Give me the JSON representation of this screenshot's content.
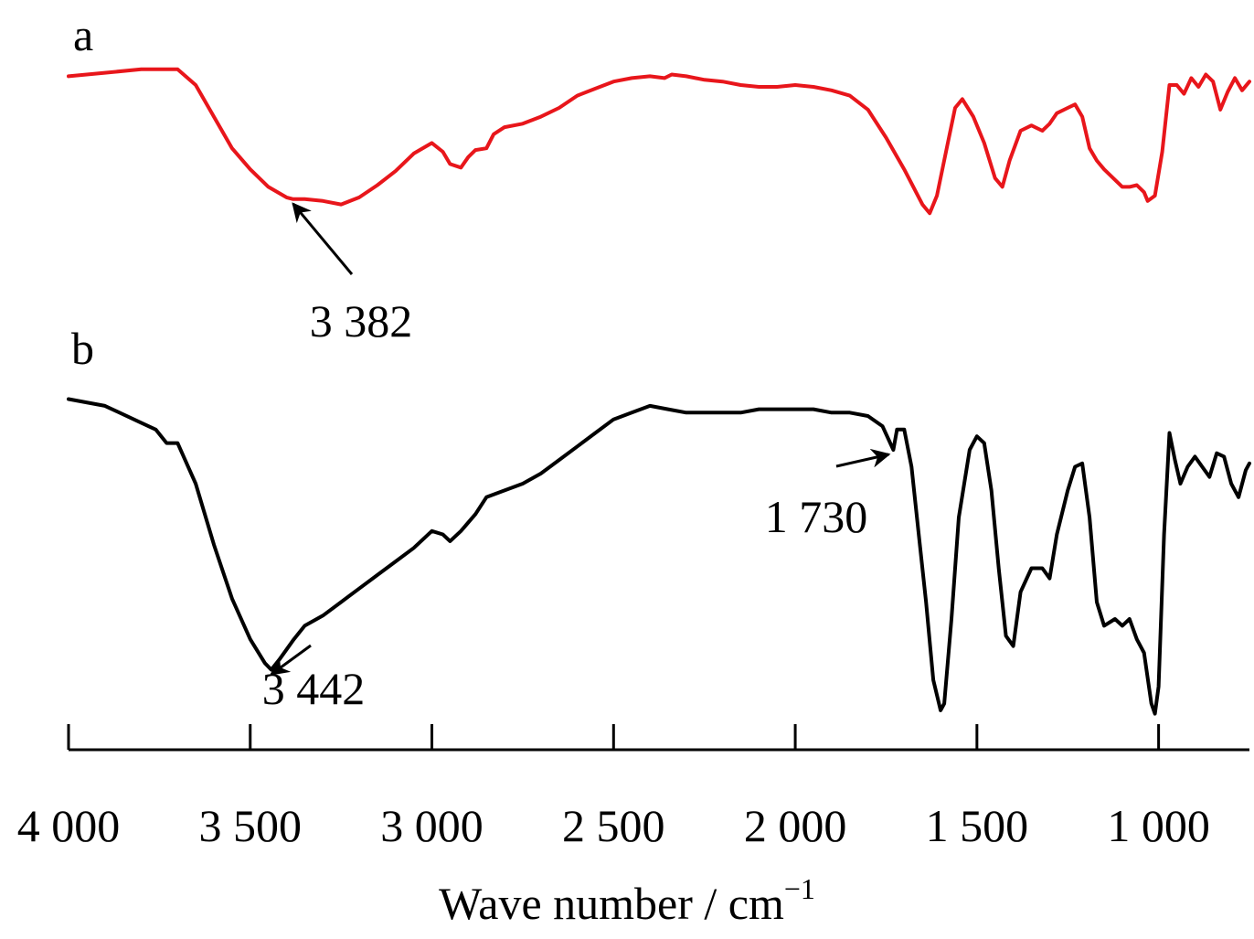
{
  "chart_data": {
    "type": "line",
    "xlabel": "Wave number / cm",
    "xlabel_superscript": "−1",
    "xlim": [
      4000,
      750
    ],
    "x_reversed": true,
    "y_axis_shown": false,
    "grid": false,
    "ticks": [
      {
        "value": 4000,
        "label": "4 000"
      },
      {
        "value": 3500,
        "label": "3 500"
      },
      {
        "value": 3000,
        "label": "3 000"
      },
      {
        "value": 2500,
        "label": "2 500"
      },
      {
        "value": 2000,
        "label": "2 000"
      },
      {
        "value": 1500,
        "label": "1 500"
      },
      {
        "value": 1000,
        "label": "1 000"
      }
    ],
    "series": [
      {
        "name": "a",
        "color": "#e8161b",
        "y_unit": "relative transmittance (0 = low, 1 = high)",
        "points": [
          [
            4000,
            0.93
          ],
          [
            3900,
            0.95
          ],
          [
            3800,
            0.97
          ],
          [
            3700,
            0.97
          ],
          [
            3650,
            0.88
          ],
          [
            3600,
            0.7
          ],
          [
            3550,
            0.52
          ],
          [
            3500,
            0.4
          ],
          [
            3450,
            0.3
          ],
          [
            3400,
            0.24
          ],
          [
            3382,
            0.23
          ],
          [
            3350,
            0.23
          ],
          [
            3300,
            0.22
          ],
          [
            3250,
            0.2
          ],
          [
            3200,
            0.24
          ],
          [
            3150,
            0.31
          ],
          [
            3100,
            0.39
          ],
          [
            3050,
            0.49
          ],
          [
            3000,
            0.55
          ],
          [
            2970,
            0.5
          ],
          [
            2950,
            0.43
          ],
          [
            2920,
            0.41
          ],
          [
            2900,
            0.47
          ],
          [
            2880,
            0.51
          ],
          [
            2850,
            0.52
          ],
          [
            2830,
            0.6
          ],
          [
            2800,
            0.64
          ],
          [
            2750,
            0.66
          ],
          [
            2700,
            0.7
          ],
          [
            2650,
            0.75
          ],
          [
            2600,
            0.82
          ],
          [
            2550,
            0.86
          ],
          [
            2500,
            0.9
          ],
          [
            2450,
            0.92
          ],
          [
            2400,
            0.93
          ],
          [
            2360,
            0.92
          ],
          [
            2340,
            0.94
          ],
          [
            2300,
            0.93
          ],
          [
            2250,
            0.91
          ],
          [
            2200,
            0.9
          ],
          [
            2150,
            0.88
          ],
          [
            2100,
            0.87
          ],
          [
            2050,
            0.87
          ],
          [
            2000,
            0.88
          ],
          [
            1950,
            0.87
          ],
          [
            1900,
            0.85
          ],
          [
            1850,
            0.82
          ],
          [
            1800,
            0.74
          ],
          [
            1750,
            0.58
          ],
          [
            1700,
            0.4
          ],
          [
            1650,
            0.2
          ],
          [
            1630,
            0.15
          ],
          [
            1610,
            0.25
          ],
          [
            1580,
            0.55
          ],
          [
            1560,
            0.75
          ],
          [
            1540,
            0.8
          ],
          [
            1510,
            0.7
          ],
          [
            1480,
            0.55
          ],
          [
            1450,
            0.35
          ],
          [
            1430,
            0.3
          ],
          [
            1410,
            0.45
          ],
          [
            1380,
            0.62
          ],
          [
            1350,
            0.65
          ],
          [
            1320,
            0.62
          ],
          [
            1300,
            0.66
          ],
          [
            1280,
            0.72
          ],
          [
            1250,
            0.75
          ],
          [
            1230,
            0.77
          ],
          [
            1210,
            0.7
          ],
          [
            1190,
            0.52
          ],
          [
            1170,
            0.45
          ],
          [
            1150,
            0.4
          ],
          [
            1120,
            0.34
          ],
          [
            1100,
            0.3
          ],
          [
            1080,
            0.3
          ],
          [
            1060,
            0.31
          ],
          [
            1040,
            0.27
          ],
          [
            1030,
            0.22
          ],
          [
            1010,
            0.25
          ],
          [
            990,
            0.5
          ],
          [
            970,
            0.88
          ],
          [
            950,
            0.88
          ],
          [
            930,
            0.83
          ],
          [
            910,
            0.92
          ],
          [
            890,
            0.87
          ],
          [
            870,
            0.94
          ],
          [
            850,
            0.9
          ],
          [
            830,
            0.74
          ],
          [
            810,
            0.84
          ],
          [
            790,
            0.92
          ],
          [
            770,
            0.85
          ],
          [
            750,
            0.9
          ]
        ]
      },
      {
        "name": "b",
        "color": "#000000",
        "y_unit": "relative transmittance (0 = low, 1 = high)",
        "points": [
          [
            4000,
            0.95
          ],
          [
            3900,
            0.93
          ],
          [
            3800,
            0.88
          ],
          [
            3760,
            0.86
          ],
          [
            3730,
            0.82
          ],
          [
            3700,
            0.82
          ],
          [
            3650,
            0.7
          ],
          [
            3600,
            0.52
          ],
          [
            3550,
            0.36
          ],
          [
            3500,
            0.24
          ],
          [
            3460,
            0.17
          ],
          [
            3442,
            0.15
          ],
          [
            3420,
            0.18
          ],
          [
            3380,
            0.24
          ],
          [
            3350,
            0.28
          ],
          [
            3300,
            0.31
          ],
          [
            3250,
            0.35
          ],
          [
            3200,
            0.39
          ],
          [
            3150,
            0.43
          ],
          [
            3100,
            0.47
          ],
          [
            3050,
            0.51
          ],
          [
            3000,
            0.56
          ],
          [
            2970,
            0.55
          ],
          [
            2950,
            0.53
          ],
          [
            2920,
            0.56
          ],
          [
            2880,
            0.61
          ],
          [
            2850,
            0.66
          ],
          [
            2800,
            0.68
          ],
          [
            2750,
            0.7
          ],
          [
            2700,
            0.73
          ],
          [
            2650,
            0.77
          ],
          [
            2600,
            0.81
          ],
          [
            2550,
            0.85
          ],
          [
            2500,
            0.89
          ],
          [
            2450,
            0.91
          ],
          [
            2400,
            0.93
          ],
          [
            2350,
            0.92
          ],
          [
            2300,
            0.91
          ],
          [
            2250,
            0.91
          ],
          [
            2200,
            0.91
          ],
          [
            2150,
            0.91
          ],
          [
            2100,
            0.92
          ],
          [
            2050,
            0.92
          ],
          [
            2000,
            0.92
          ],
          [
            1950,
            0.92
          ],
          [
            1900,
            0.91
          ],
          [
            1850,
            0.91
          ],
          [
            1800,
            0.9
          ],
          [
            1760,
            0.87
          ],
          [
            1730,
            0.8
          ],
          [
            1720,
            0.86
          ],
          [
            1700,
            0.86
          ],
          [
            1680,
            0.75
          ],
          [
            1660,
            0.55
          ],
          [
            1640,
            0.35
          ],
          [
            1620,
            0.12
          ],
          [
            1600,
            0.03
          ],
          [
            1590,
            0.05
          ],
          [
            1570,
            0.3
          ],
          [
            1550,
            0.6
          ],
          [
            1520,
            0.8
          ],
          [
            1500,
            0.84
          ],
          [
            1480,
            0.82
          ],
          [
            1460,
            0.68
          ],
          [
            1440,
            0.45
          ],
          [
            1420,
            0.25
          ],
          [
            1400,
            0.22
          ],
          [
            1380,
            0.38
          ],
          [
            1350,
            0.45
          ],
          [
            1320,
            0.45
          ],
          [
            1300,
            0.42
          ],
          [
            1280,
            0.55
          ],
          [
            1250,
            0.68
          ],
          [
            1230,
            0.75
          ],
          [
            1210,
            0.76
          ],
          [
            1190,
            0.6
          ],
          [
            1170,
            0.35
          ],
          [
            1150,
            0.28
          ],
          [
            1120,
            0.3
          ],
          [
            1100,
            0.28
          ],
          [
            1080,
            0.3
          ],
          [
            1060,
            0.24
          ],
          [
            1040,
            0.2
          ],
          [
            1020,
            0.05
          ],
          [
            1010,
            0.02
          ],
          [
            1000,
            0.1
          ],
          [
            985,
            0.55
          ],
          [
            970,
            0.85
          ],
          [
            955,
            0.77
          ],
          [
            940,
            0.7
          ],
          [
            920,
            0.75
          ],
          [
            900,
            0.78
          ],
          [
            880,
            0.75
          ],
          [
            860,
            0.72
          ],
          [
            840,
            0.79
          ],
          [
            820,
            0.78
          ],
          [
            800,
            0.7
          ],
          [
            780,
            0.66
          ],
          [
            760,
            0.74
          ],
          [
            750,
            0.76
          ]
        ]
      }
    ],
    "annotations": [
      {
        "series": "a",
        "x": 3382,
        "label": "3 382",
        "arrow": true
      },
      {
        "series": "b",
        "x": 3442,
        "label": "3 442",
        "arrow": true
      },
      {
        "series": "b",
        "x": 1730,
        "label": "1 730",
        "arrow": true
      }
    ]
  }
}
